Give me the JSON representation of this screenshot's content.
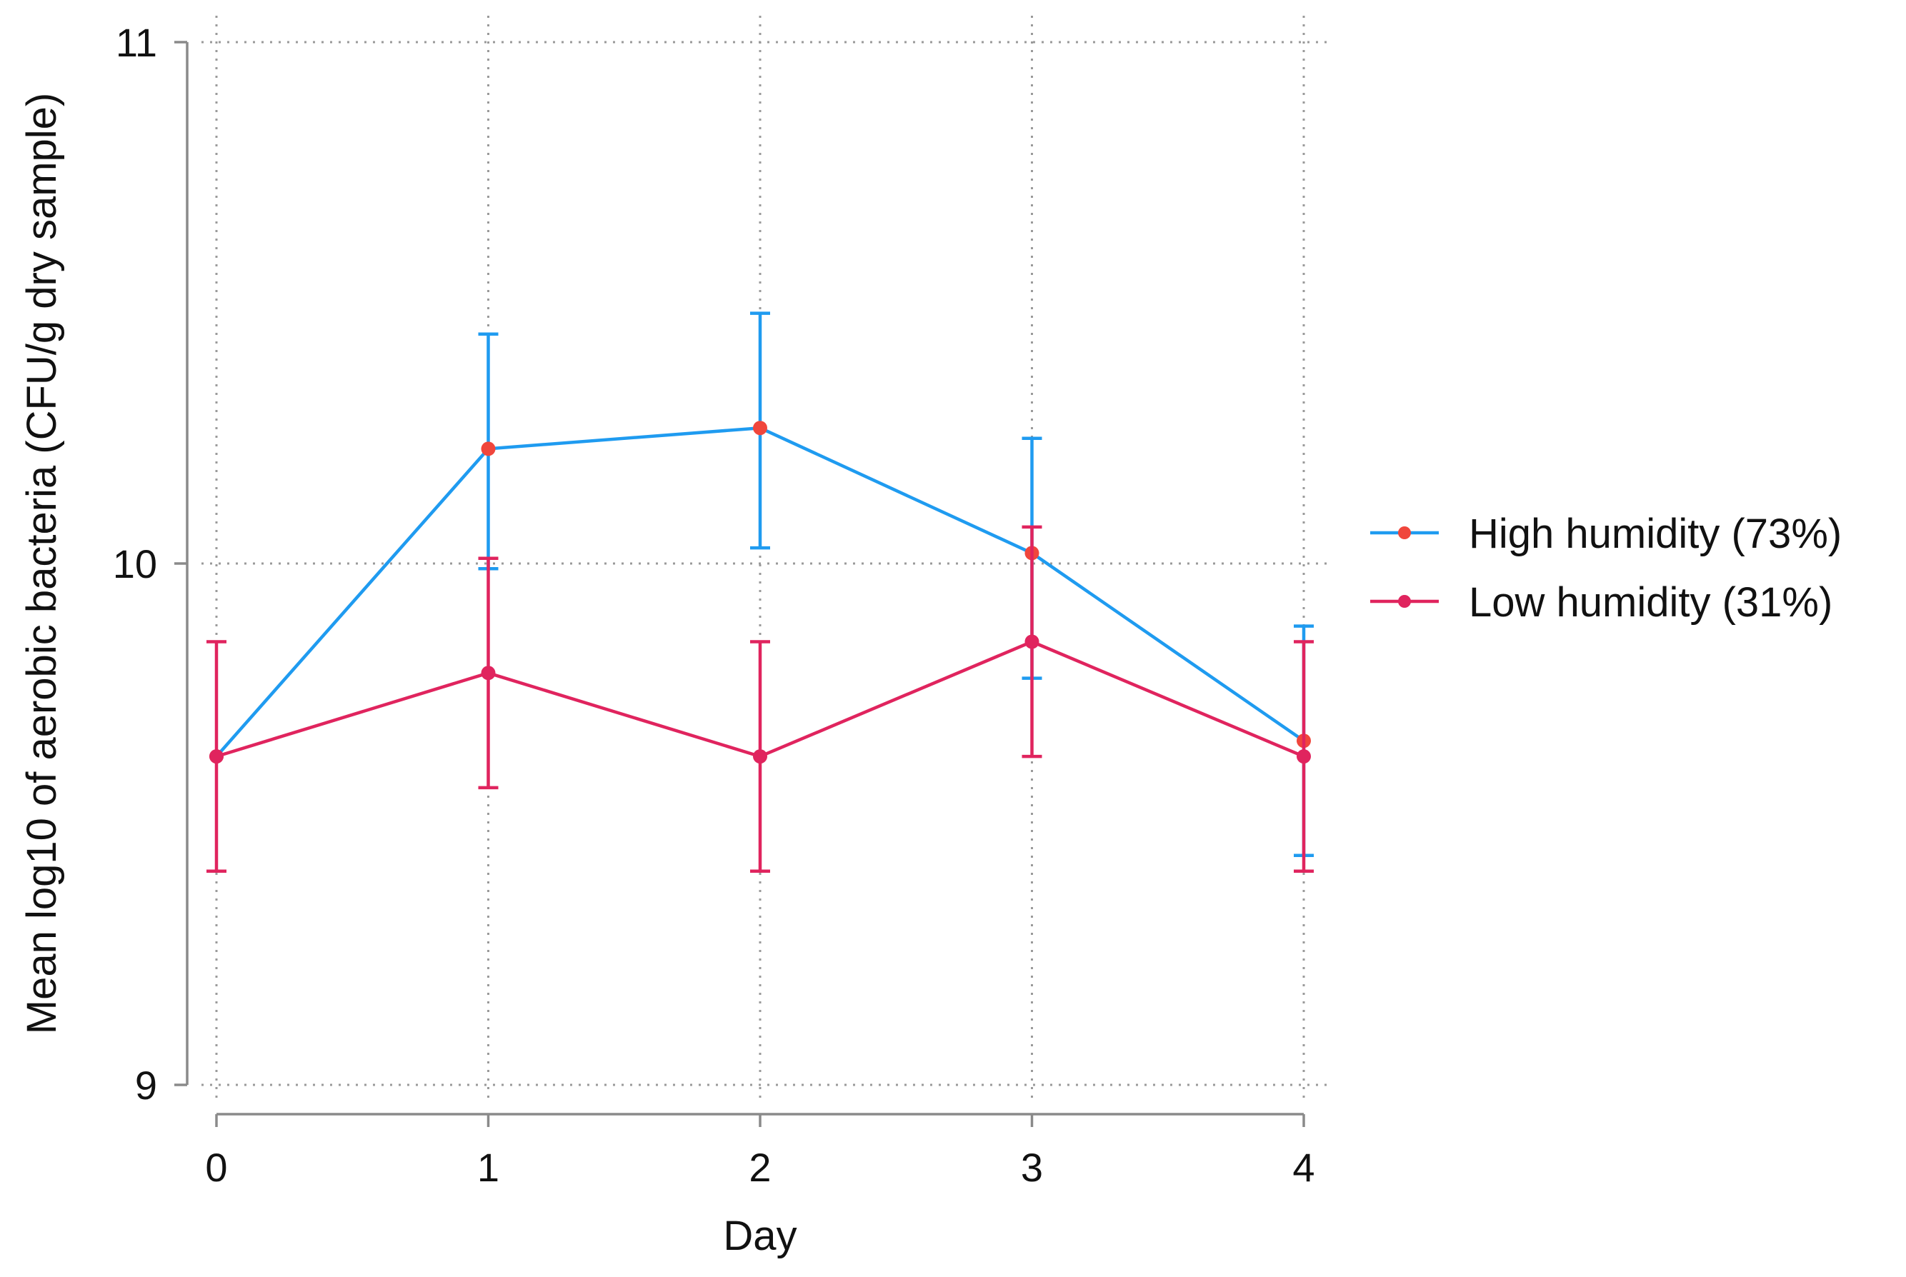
{
  "chart_data": {
    "type": "line",
    "title": "",
    "xlabel": "Day",
    "ylabel": "Mean log10 of aerobic bacteria (CFU/g dry sample)",
    "x": [
      0,
      1,
      2,
      3,
      4
    ],
    "x_tick_labels": [
      "0",
      "1",
      "2",
      "3",
      "4"
    ],
    "y_ticks": [
      9,
      10,
      11
    ],
    "y_tick_labels": [
      "9",
      "10",
      "11"
    ],
    "xlim": [
      0,
      4
    ],
    "ylim": [
      9,
      11
    ],
    "grid": true,
    "legend_position": "right",
    "series": [
      {
        "name": "High humidity (73%)",
        "line_color": "#1f9bf0",
        "marker_color": "#f0463c",
        "values": [
          9.63,
          10.22,
          10.26,
          10.02,
          9.66
        ],
        "error_lower": [
          9.63,
          9.99,
          10.03,
          9.78,
          9.44
        ],
        "error_upper": [
          9.63,
          10.44,
          10.48,
          10.24,
          9.88
        ]
      },
      {
        "name": "Low humidity (31%)",
        "line_color": "#e0245e",
        "marker_color": "#e0245e",
        "values": [
          9.63,
          9.79,
          9.63,
          9.85,
          9.63
        ],
        "error_lower": [
          9.41,
          9.57,
          9.41,
          9.63,
          9.41
        ],
        "error_upper": [
          9.85,
          10.01,
          9.85,
          10.07,
          9.85
        ]
      }
    ]
  }
}
